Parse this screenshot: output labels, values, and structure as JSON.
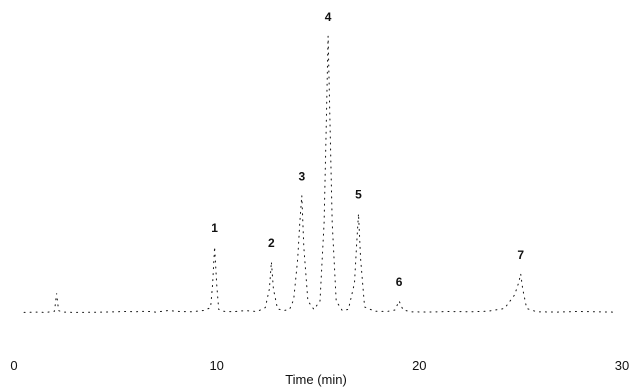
{
  "chart_data": {
    "type": "line",
    "title": "",
    "xlabel": "Time (min)",
    "ylabel": "",
    "xlim": [
      0,
      30
    ],
    "ylim": [
      0,
      100
    ],
    "x_ticks": [
      "0",
      "10",
      "20",
      "30"
    ],
    "grid": false,
    "legend": "none",
    "line_color": "#111111",
    "peaks": [
      {
        "label": "1",
        "x": 9.9,
        "y": 22
      },
      {
        "label": "2",
        "x": 12.7,
        "y": 17
      },
      {
        "label": "3",
        "x": 14.2,
        "y": 39
      },
      {
        "label": "4",
        "x": 15.5,
        "y": 92
      },
      {
        "label": "5",
        "x": 17.0,
        "y": 33
      },
      {
        "label": "6",
        "x": 19.0,
        "y": 4
      },
      {
        "label": "7",
        "x": 25.0,
        "y": 13
      }
    ],
    "series": [
      {
        "x": [
          0.5,
          1.0,
          1.6,
          2.0,
          2.1,
          2.2,
          2.4,
          3.0,
          4.5,
          5.5,
          6.0,
          6.5,
          7.0,
          7.6,
          8.2,
          8.8,
          9.4,
          9.7,
          9.8,
          9.9,
          10.0,
          10.1,
          10.3,
          10.8,
          11.4,
          12.0,
          12.4,
          12.6,
          12.7,
          12.8,
          13.0,
          13.3,
          13.6,
          13.8,
          14.0,
          14.1,
          14.2,
          14.3,
          14.5,
          14.8,
          15.1,
          15.3,
          15.4,
          15.5,
          15.6,
          15.7,
          15.9,
          16.2,
          16.5,
          16.8,
          16.9,
          17.0,
          17.1,
          17.3,
          17.8,
          18.4,
          18.8,
          19.0,
          19.2,
          19.6,
          20.4,
          21.5,
          22.5,
          23.4,
          24.2,
          24.7,
          24.9,
          25.0,
          25.1,
          25.3,
          25.8,
          26.8,
          27.8,
          28.8,
          29.6
        ],
        "y": [
          0.2,
          0.3,
          0.2,
          0.6,
          6.5,
          0.8,
          0.3,
          0.2,
          0.3,
          0.5,
          0.4,
          0.6,
          0.3,
          0.8,
          0.5,
          0.4,
          0.9,
          1.8,
          9.5,
          22.0,
          9.5,
          1.2,
          0.6,
          0.4,
          0.8,
          0.5,
          1.8,
          8.0,
          17.0,
          8.0,
          1.4,
          0.8,
          1.2,
          4.5,
          18.0,
          30.0,
          39.0,
          22.0,
          4.0,
          1.2,
          4.0,
          30.0,
          60.0,
          92.0,
          60.0,
          30.0,
          4.0,
          0.8,
          1.2,
          10.0,
          22.0,
          33.0,
          18.0,
          2.0,
          0.6,
          0.5,
          1.0,
          4.0,
          1.0,
          0.4,
          0.3,
          0.5,
          0.4,
          0.6,
          1.5,
          6.0,
          10.0,
          13.0,
          8.0,
          1.5,
          0.4,
          0.3,
          0.5,
          0.4,
          0.3
        ]
      }
    ]
  }
}
